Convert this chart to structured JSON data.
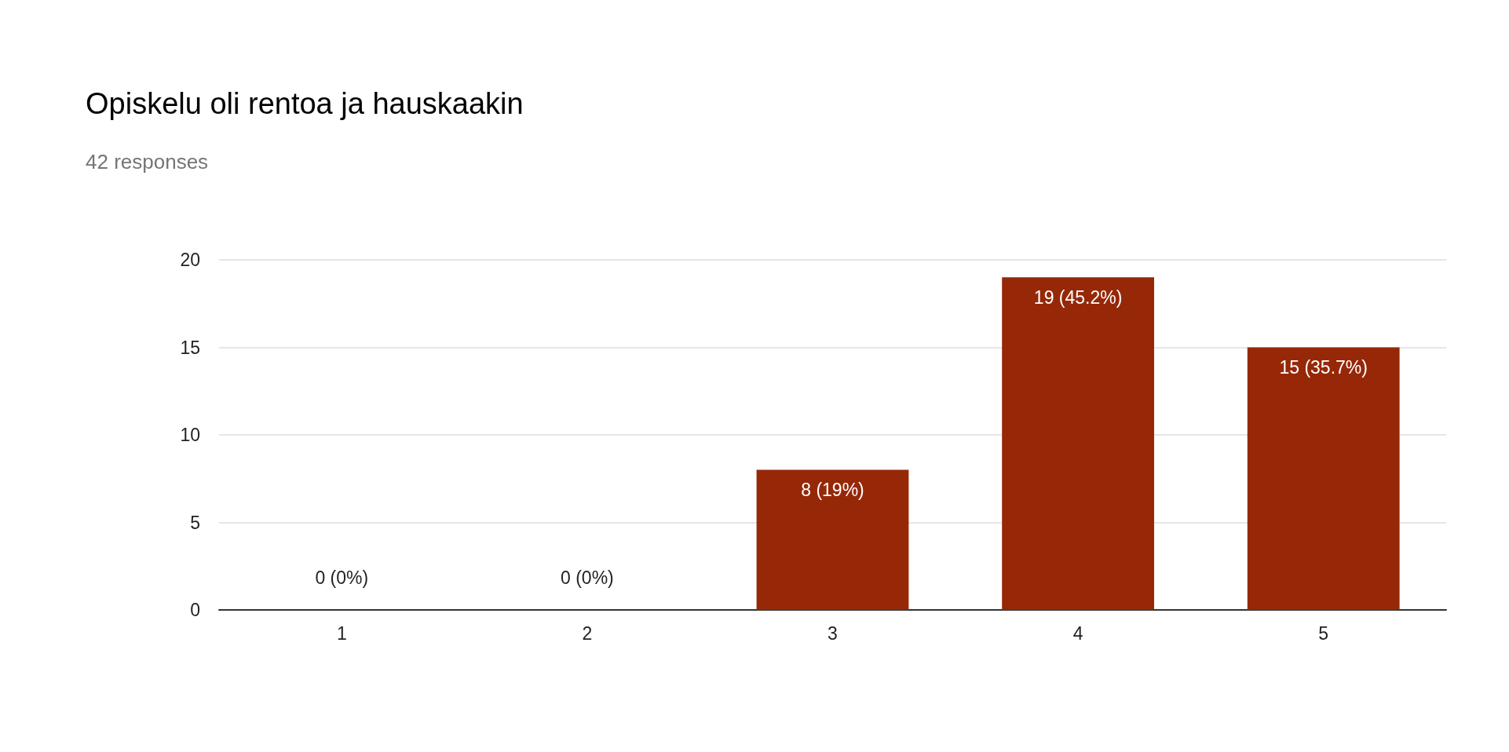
{
  "chart_data": {
    "type": "bar",
    "title": "Opiskelu oli rentoa ja hauskaakin",
    "subtitle": "42 responses",
    "categories": [
      "1",
      "2",
      "3",
      "4",
      "5"
    ],
    "values": [
      0,
      0,
      8,
      19,
      15
    ],
    "value_labels": [
      "0 (0%)",
      "0 (0%)",
      "8 (19%)",
      "19 (45.2%)",
      "15 (35.7%)"
    ],
    "color": "#962808",
    "ylim": [
      0,
      20
    ],
    "yticks": [
      0,
      5,
      10,
      15,
      20
    ],
    "grid": "y"
  }
}
